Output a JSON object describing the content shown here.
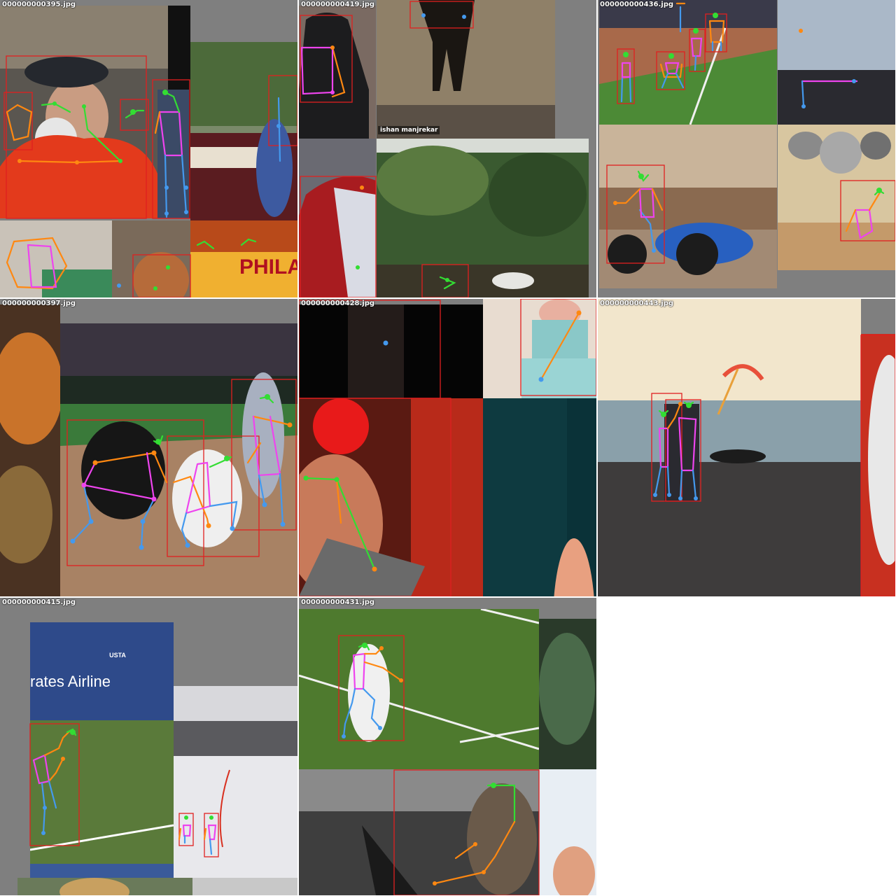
{
  "tiles": [
    {
      "filename": "000000000395.jpg"
    },
    {
      "filename": "000000000419.jpg"
    },
    {
      "filename": "000000000436.jpg"
    },
    {
      "filename": "000000000397.jpg"
    },
    {
      "filename": "000000000428.jpg"
    },
    {
      "filename": "000000000443.jpg"
    },
    {
      "filename": "000000000415.jpg"
    },
    {
      "filename": "000000000431.jpg"
    }
  ],
  "captions": {
    "tile2_watermark": "ishan manjrekar",
    "tile1_banner": "PHILA",
    "tile7_sign": "rates Airline",
    "tile7_logo": "USTA"
  },
  "colors": {
    "tile_background": "#7f7f7f",
    "bbox": "#e02020",
    "head_limbs": "#33dd33",
    "left_limbs": "#ff8811",
    "center": "#ee44ee",
    "right_limbs": "#4499ee"
  }
}
